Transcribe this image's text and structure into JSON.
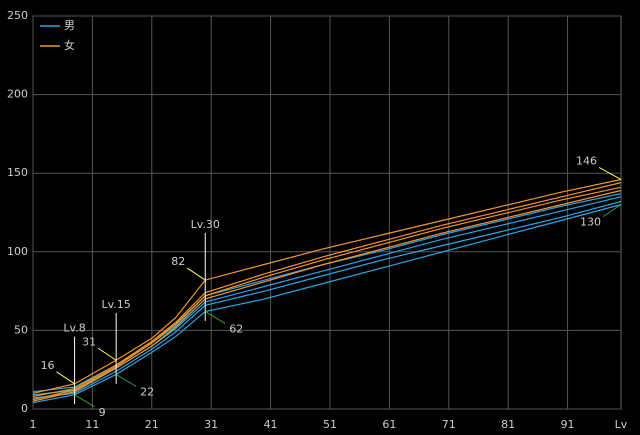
{
  "chart_data": {
    "type": "line",
    "x": [
      1,
      8,
      15,
      21,
      25,
      30,
      40,
      50,
      60,
      70,
      80,
      90,
      100
    ],
    "xlim": [
      1,
      100
    ],
    "xticks": [
      1,
      11,
      21,
      31,
      41,
      51,
      61,
      71,
      81,
      91
    ],
    "x_label": "Lv",
    "ylim": [
      0,
      250
    ],
    "yticks": [
      0,
      50,
      100,
      150,
      200,
      250
    ],
    "grid": true,
    "legend": "top-left",
    "series": [
      {
        "name": "男",
        "color": "#2aa5e6",
        "values": [
          11,
          14,
          28,
          42,
          53,
          72,
          82,
          92,
          101,
          111,
          120,
          129,
          137
        ]
      },
      {
        "name": null,
        "color": "#2aa5e6",
        "values": [
          9,
          12,
          26,
          40,
          51,
          68,
          78,
          88,
          98,
          108,
          117,
          126,
          135
        ]
      },
      {
        "name": null,
        "color": "#2aa5e6",
        "values": [
          7,
          10,
          24,
          38,
          49,
          66,
          75,
          85,
          95,
          104,
          113,
          122,
          132
        ]
      },
      {
        "name": null,
        "color": "#2aa5e6",
        "values": [
          4,
          9,
          22,
          36,
          46,
          62,
          70,
          80,
          90,
          100,
          110,
          120,
          130
        ]
      },
      {
        "name": "女",
        "color": "#f0962a",
        "values": [
          10,
          16,
          31,
          45,
          58,
          82,
          92,
          102,
          111,
          120,
          129,
          138,
          146
        ]
      },
      {
        "name": null,
        "color": "#f0962a",
        "values": [
          8,
          13,
          28,
          43,
          55,
          74,
          86,
          97,
          107,
          117,
          126,
          135,
          144
        ]
      },
      {
        "name": null,
        "color": "#f0962a",
        "values": [
          6,
          12,
          27,
          42,
          54,
          72,
          84,
          95,
          105,
          115,
          124,
          133,
          141
        ]
      },
      {
        "name": null,
        "color": "#f0962a",
        "values": [
          5,
          11,
          26,
          40,
          52,
          70,
          81,
          92,
          102,
          112,
          121,
          130,
          139
        ]
      }
    ],
    "annotations": [
      {
        "label": "Lv.8",
        "x": 8,
        "max": 16,
        "min": 9
      },
      {
        "label": "Lv.15",
        "x": 15,
        "max": 31,
        "min": 22
      },
      {
        "label": "Lv.30",
        "x": 30,
        "max": 82,
        "min": 62
      },
      {
        "x": 100,
        "max": 146,
        "min": 130
      }
    ],
    "max_color": "#ffff55",
    "min_color": "#2f9e2f"
  }
}
